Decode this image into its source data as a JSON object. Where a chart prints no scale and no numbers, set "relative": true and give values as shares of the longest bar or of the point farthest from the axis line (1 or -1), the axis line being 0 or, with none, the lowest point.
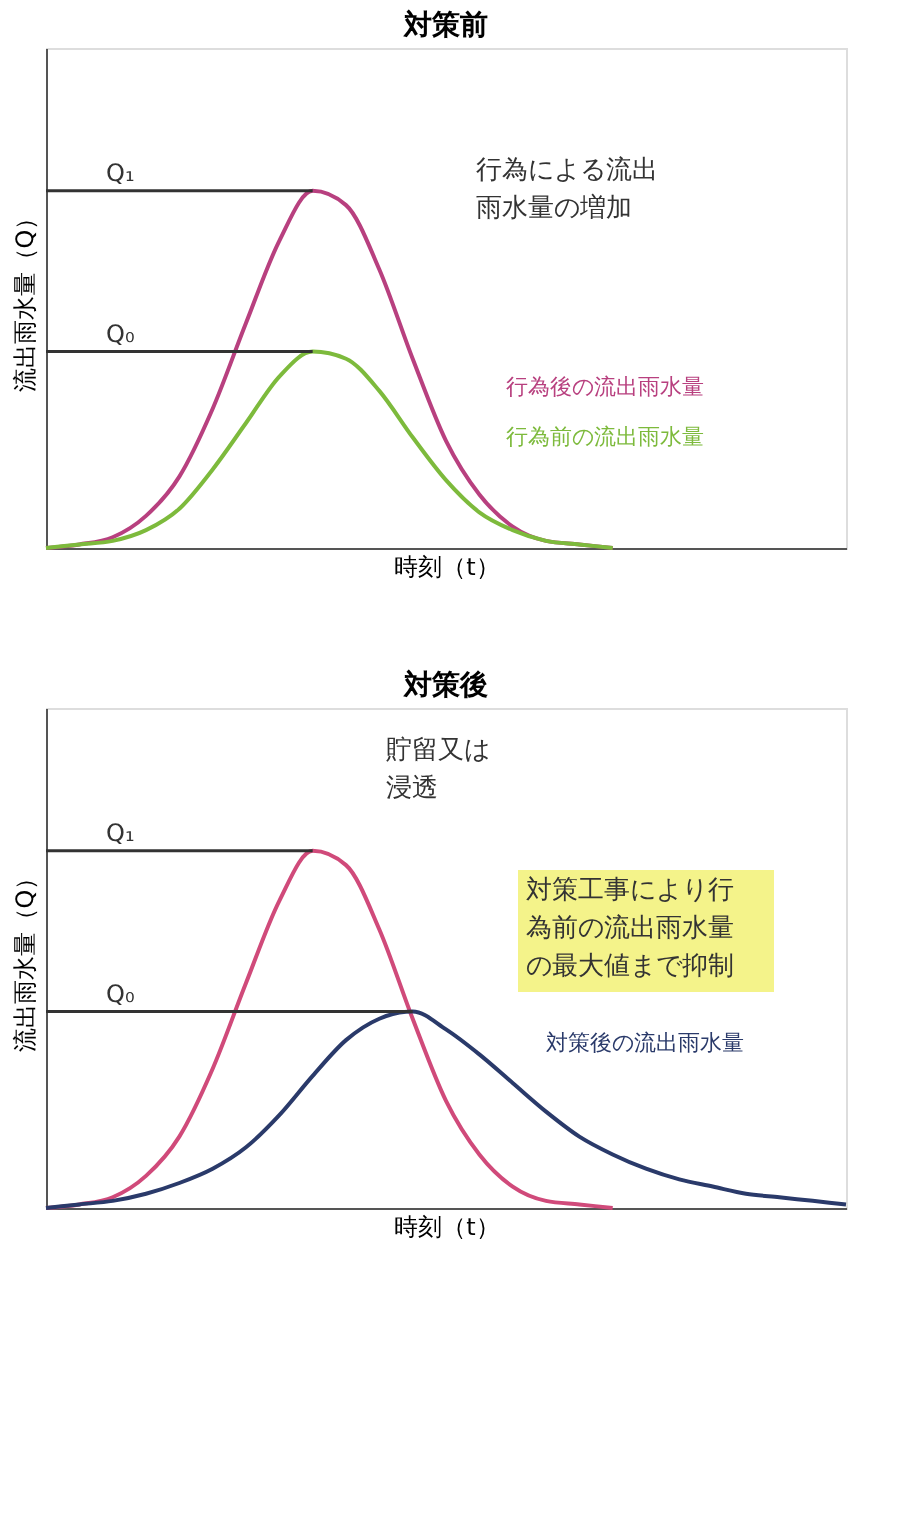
{
  "chart_data": [
    {
      "type": "line",
      "title": "対策前",
      "xlabel": "時刻（t）",
      "ylabel": "流出雨水量（Q）",
      "relative": true,
      "legend": false,
      "grid": false,
      "tick_labels": false,
      "categories": [
        null,
        null,
        null,
        null,
        null,
        null,
        null,
        null,
        null,
        null,
        null,
        null,
        null,
        null,
        null,
        null,
        null,
        null,
        null,
        null,
        null,
        null,
        null,
        null,
        null
      ],
      "series": [
        {
          "name": "行為後の流出雨水量",
          "color": "#b8407f",
          "values": [
            0.0,
            0.01,
            0.03,
            0.09,
            0.2,
            0.39,
            0.63,
            0.86,
            1.0,
            0.96,
            0.78,
            0.53,
            0.3,
            0.15,
            0.06,
            0.02,
            0.01,
            0.0,
            null,
            null,
            null,
            null,
            null,
            null,
            null
          ]
        },
        {
          "name": "行為前の流出雨水量",
          "color": "#7dba3c",
          "values": [
            0.0,
            0.01,
            0.02,
            0.05,
            0.11,
            0.22,
            0.35,
            0.48,
            0.55,
            0.53,
            0.44,
            0.31,
            0.19,
            0.1,
            0.05,
            0.02,
            0.01,
            0.0,
            null,
            null,
            null,
            null,
            null,
            null,
            null
          ]
        }
      ],
      "ref_lines": [
        {
          "axis": "y",
          "value": 1.0,
          "label": "Q₁",
          "color": "#333333"
        },
        {
          "axis": "y",
          "value": 0.55,
          "label": "Q₀",
          "color": "#333333"
        }
      ],
      "annotations": [
        "行為による流出雨水量の増加"
      ]
    },
    {
      "type": "line",
      "title": "対策後",
      "xlabel": "時刻（t）",
      "ylabel": "流出雨水量（Q）",
      "relative": true,
      "legend": false,
      "grid": false,
      "tick_labels": false,
      "categories": [
        null,
        null,
        null,
        null,
        null,
        null,
        null,
        null,
        null,
        null,
        null,
        null,
        null,
        null,
        null,
        null,
        null,
        null,
        null,
        null,
        null,
        null,
        null,
        null,
        null
      ],
      "series": [
        {
          "color": "#d04a7a",
          "values": [
            0.0,
            0.01,
            0.03,
            0.09,
            0.2,
            0.39,
            0.63,
            0.86,
            1.0,
            0.96,
            0.78,
            0.53,
            0.3,
            0.15,
            0.06,
            0.02,
            0.01,
            0.0,
            null,
            null,
            null,
            null,
            null,
            null,
            null
          ]
        },
        {
          "name": "対策後の流出雨水量",
          "color": "#2a3a6a",
          "values": [
            0.0,
            0.01,
            0.02,
            0.04,
            0.07,
            0.11,
            0.17,
            0.26,
            0.37,
            0.47,
            0.53,
            0.55,
            0.5,
            0.43,
            0.35,
            0.27,
            0.2,
            0.15,
            0.11,
            0.08,
            0.06,
            0.04,
            0.03,
            0.02,
            0.01
          ]
        }
      ],
      "ref_lines": [
        {
          "axis": "y",
          "value": 1.0,
          "label": "Q₁",
          "color": "#333333"
        },
        {
          "axis": "y",
          "value": 0.55,
          "label": "Q₀",
          "color": "#333333"
        }
      ],
      "annotations": [
        "貯留又は浸透",
        "対策工事により行為前の流出雨水量の最大値まで抑制"
      ]
    }
  ]
}
